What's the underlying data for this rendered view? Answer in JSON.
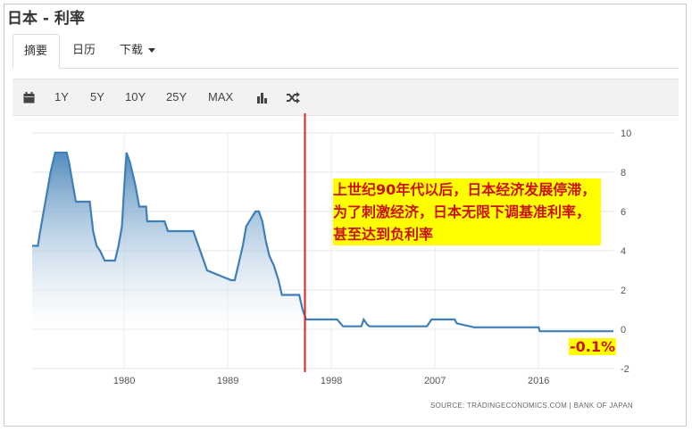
{
  "page_title": "日本 - 利率",
  "tabs": [
    {
      "label": "摘要"
    },
    {
      "label": "日历"
    },
    {
      "label": "下载"
    }
  ],
  "toolbar": {
    "icons": [
      "calendar-icon",
      "bar-chart-icon",
      "shuffle-icon"
    ],
    "ranges": [
      "1Y",
      "5Y",
      "10Y",
      "25Y",
      "MAX"
    ]
  },
  "annotation_text": "上世纪90年代以后，日本经济发展停滞，为了刺激经济，日本无限下调基准利率，甚至达到负利率",
  "value_label": "-0.1%",
  "source_text": "SOURCE: TRADINGECONOMICS.COM  |  BANK OF JAPAN",
  "colors": {
    "line": "#3f7fb8",
    "area_top": "#4a85ba",
    "area_bottom": "#ffffff",
    "marker": "#e02020",
    "annotation": "#cc1111",
    "highlight": "#ffff00"
  },
  "chart_data": {
    "type": "area",
    "title": "",
    "xlabel": "",
    "ylabel": "",
    "x_ticks": [
      "1980",
      "1989",
      "1998",
      "2007",
      "2016"
    ],
    "y_ticks": [
      10,
      8,
      6,
      4,
      2,
      0,
      -2
    ],
    "xlim": [
      1972.0,
      2022.5
    ],
    "ylim": [
      -2,
      10
    ],
    "grid": true,
    "marker_year": 1995.7,
    "series": [
      {
        "x": [
          1972.0,
          1972.5,
          1972.7,
          1973.0,
          1973.3,
          1973.6,
          1974.0,
          1975.0,
          1975.2,
          1975.5,
          1975.8,
          1977.0,
          1977.3,
          1977.6,
          1977.9,
          1978.3,
          1979.2,
          1979.5,
          1979.8,
          1980.0,
          1980.2,
          1980.5,
          1980.7,
          1981.0,
          1981.3,
          1981.6,
          1981.9,
          1982.0,
          1983.5,
          1983.8,
          1986.0,
          1986.3,
          1986.6,
          1986.9,
          1987.2,
          1989.3,
          1989.6,
          1989.9,
          1990.3,
          1990.6,
          1991.4,
          1991.7,
          1992.0,
          1992.3,
          1992.6,
          1993.0,
          1993.4,
          1993.7,
          1995.2,
          1995.5,
          1995.8,
          1998.5,
          1999.0,
          2000.6,
          2000.8,
          2001.1,
          2001.3,
          2006.3,
          2006.7,
          2007.0,
          2008.7,
          2008.9,
          2010.4,
          2015.0,
          2016.0,
          2016.1,
          2022.5
        ],
        "y": [
          4.25,
          4.25,
          5.0,
          6.0,
          7.0,
          8.0,
          9.0,
          9.0,
          8.5,
          7.5,
          6.5,
          6.5,
          5.0,
          4.25,
          4.0,
          3.5,
          3.5,
          4.25,
          5.25,
          7.25,
          9.0,
          8.5,
          8.0,
          7.25,
          6.25,
          6.25,
          6.25,
          5.5,
          5.5,
          5.0,
          5.0,
          4.5,
          4.0,
          3.5,
          3.0,
          2.5,
          2.5,
          3.25,
          4.25,
          5.25,
          6.0,
          6.0,
          5.5,
          4.5,
          3.75,
          3.25,
          2.5,
          1.75,
          1.75,
          1.0,
          0.5,
          0.5,
          0.15,
          0.15,
          0.5,
          0.25,
          0.15,
          0.15,
          0.5,
          0.5,
          0.5,
          0.3,
          0.1,
          0.1,
          0.1,
          -0.1,
          -0.1
        ]
      }
    ]
  }
}
